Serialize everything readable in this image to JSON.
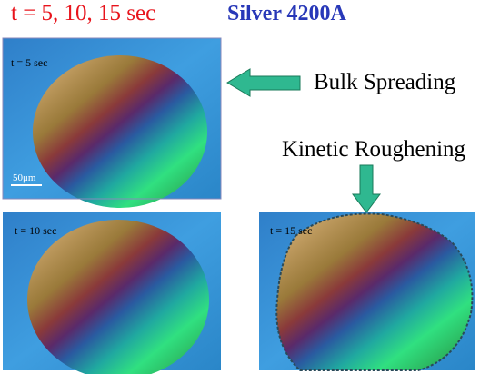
{
  "header": {
    "time_label": "t = 5, 10, 15 sec",
    "sample": "Silver 4200A"
  },
  "panels": [
    {
      "label": "t = 5 sec",
      "scale_bar": "50μm"
    },
    {
      "label": "t = 10 sec"
    },
    {
      "label": "t = 15 sec"
    }
  ],
  "annotations": {
    "bulk": "Bulk Spreading",
    "kinetic": "Kinetic Roughening"
  }
}
